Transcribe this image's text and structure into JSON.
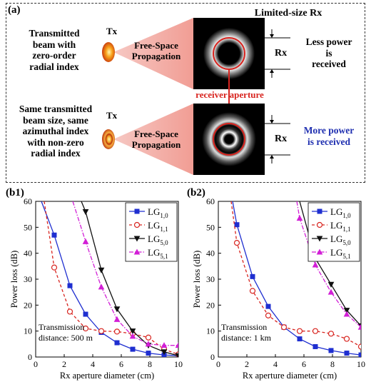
{
  "panel_a": {
    "label": "(a)",
    "title": "Limited-size Rx",
    "row1": {
      "left_text": [
        "Transmitted",
        "beam with",
        "zero-order",
        "radial index"
      ],
      "tx": "Tx",
      "fsp": [
        "Free-Space",
        "Propagation"
      ],
      "rx_label": "Rx",
      "right_text": [
        "Less power",
        "is",
        "received"
      ]
    },
    "aperture_label": "receiver aperture",
    "row2": {
      "left_text": [
        "Same transmitted",
        "beam size, same",
        "azimuthal index",
        "with non-zero",
        "radial index"
      ],
      "tx": "Tx",
      "fsp": [
        "Free-Space",
        "Propagation"
      ],
      "rx_label": "Rx",
      "right_text": [
        "More power",
        "is received"
      ]
    },
    "colors": {
      "aperture": "#d8241f",
      "more_power": "#1f2fb0",
      "beam": "#f3a6a0"
    }
  },
  "chart_data": [
    {
      "panel": "(b1)",
      "type": "line",
      "xlabel": "Rx aperture diameter (cm)",
      "ylabel": "Power loss (dB)",
      "xlim": [
        0,
        10
      ],
      "ylim": [
        0,
        60
      ],
      "xticks": [
        0,
        2,
        4,
        6,
        8,
        10
      ],
      "yticks": [
        0,
        10,
        20,
        30,
        40,
        50,
        60
      ],
      "annotation": [
        "Transmission",
        "distance: 500 m"
      ],
      "legend_position": "top-right",
      "series": [
        {
          "name": "LG1,0",
          "base": "LG",
          "sub": "1,0",
          "color": "#1f2fd0",
          "marker": "square",
          "dash": "solid",
          "x": [
            0.4,
            1.3,
            2.4,
            3.5,
            4.6,
            5.7,
            6.8,
            7.9,
            9.0,
            10.0
          ],
          "y": [
            60,
            47,
            27.5,
            16.5,
            9.5,
            5.5,
            3,
            1.5,
            0.8,
            0.5
          ]
        },
        {
          "name": "LG1,1",
          "base": "LG",
          "sub": "1,1",
          "color": "#d8241f",
          "marker": "circle-open",
          "dash": "dash",
          "x": [
            0.6,
            1.3,
            2.4,
            3.5,
            4.6,
            5.7,
            6.8,
            7.9,
            9.0,
            10.0
          ],
          "y": [
            60,
            34.5,
            17.5,
            11,
            10,
            9.8,
            9,
            7.5,
            3,
            1
          ]
        },
        {
          "name": "LG5,0",
          "base": "LG",
          "sub": "5,0",
          "color": "#111111",
          "marker": "triangle-down",
          "dash": "solid",
          "x": [
            3.2,
            3.5,
            4.6,
            5.7,
            6.8,
            7.9,
            9.0,
            10.0
          ],
          "y": [
            60,
            56,
            33.5,
            18.5,
            10,
            4.5,
            2,
            0.5
          ]
        },
        {
          "name": "LG5,1",
          "base": "LG",
          "sub": "5,1",
          "color": "#d21fd6",
          "marker": "triangle-up",
          "dash": "dashdot",
          "x": [
            2.6,
            3.5,
            4.6,
            5.7,
            6.8,
            7.9,
            9.0,
            10.0
          ],
          "y": [
            60,
            44.5,
            27,
            14.5,
            8,
            5,
            4.5,
            4.5
          ]
        }
      ]
    },
    {
      "panel": "(b2)",
      "type": "line",
      "xlabel": "Rx aperture diameter (cm)",
      "ylabel": "Power loss (dB)",
      "xlim": [
        0,
        10
      ],
      "ylim": [
        0,
        60
      ],
      "xticks": [
        0,
        2,
        4,
        6,
        8,
        10
      ],
      "yticks": [
        0,
        10,
        20,
        30,
        40,
        50,
        60
      ],
      "annotation": [
        "Transmission",
        "distance: 1 km"
      ],
      "legend_position": "top-right",
      "series": [
        {
          "name": "LG1,0",
          "base": "LG",
          "sub": "1,0",
          "color": "#1f2fd0",
          "marker": "square",
          "dash": "solid",
          "x": [
            1.0,
            1.3,
            2.4,
            3.5,
            4.6,
            5.7,
            6.8,
            7.9,
            9.0,
            10.0
          ],
          "y": [
            60,
            51,
            31,
            19.5,
            11.5,
            7,
            4,
            2.5,
            1.5,
            0.8
          ]
        },
        {
          "name": "LG1,1",
          "base": "LG",
          "sub": "1,1",
          "color": "#d8241f",
          "marker": "circle-open",
          "dash": "dash",
          "x": [
            0.9,
            1.3,
            2.4,
            3.5,
            4.6,
            5.7,
            6.8,
            7.9,
            9.0,
            10.0
          ],
          "y": [
            60,
            44,
            25.5,
            16,
            11.5,
            10,
            10,
            9,
            7,
            4
          ]
        },
        {
          "name": "LG5,0",
          "base": "LG",
          "sub": "5,0",
          "color": "#111111",
          "marker": "triangle-down",
          "dash": "solid",
          "x": [
            5.7,
            6.8,
            7.9,
            9.0,
            10.0
          ],
          "y": [
            60,
            38,
            28,
            18,
            12
          ]
        },
        {
          "name": "LG5,1",
          "base": "LG",
          "sub": "5,1",
          "color": "#d21fd6",
          "marker": "triangle-up",
          "dash": "dashdot",
          "x": [
            5.5,
            5.7,
            6.8,
            7.9,
            9.0,
            10.0
          ],
          "y": [
            60,
            53.5,
            35.5,
            25,
            16.5,
            11.5
          ]
        }
      ]
    }
  ]
}
